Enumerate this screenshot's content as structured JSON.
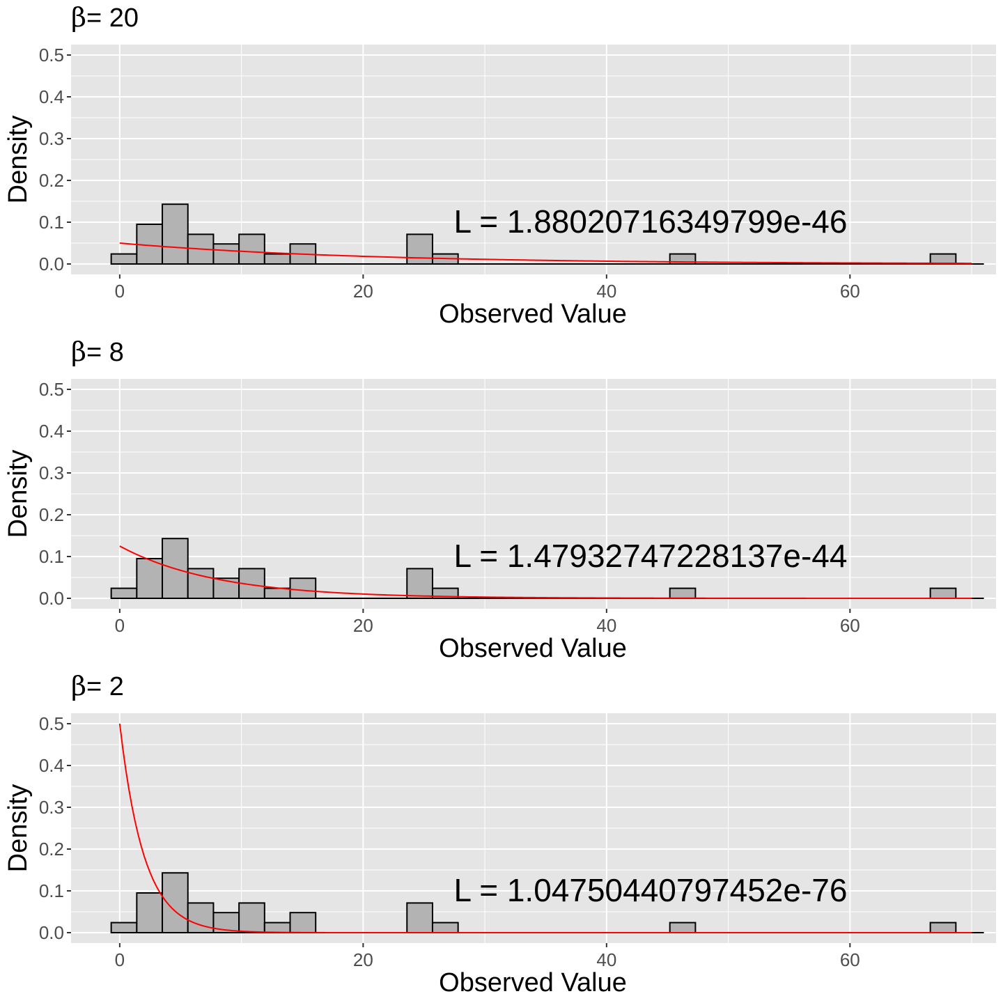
{
  "chart_data": [
    {
      "type": "bar",
      "title_symbol": "β",
      "title_text": "= 20",
      "xlabel": "Observed Value",
      "ylabel": "Density",
      "annotation": "L = 1.88020716349799e-46",
      "xlim": [
        -4,
        72
      ],
      "ylim": [
        -0.025,
        0.525
      ],
      "xticks": [
        0,
        20,
        40,
        60
      ],
      "yticks": [
        "0.0",
        "0.1",
        "0.2",
        "0.3",
        "0.4",
        "0.5"
      ],
      "bin_width": 2.1,
      "histogram": {
        "bin_left": [
          -0.7,
          1.4,
          3.5,
          5.6,
          7.7,
          9.8,
          11.9,
          14.0,
          23.6,
          25.7,
          45.2,
          66.6
        ],
        "density": [
          0.024,
          0.095,
          0.143,
          0.071,
          0.048,
          0.071,
          0.024,
          0.048,
          0.071,
          0.024,
          0.024,
          0.024
        ]
      },
      "curve": {
        "label": "exponential density",
        "beta": 20,
        "x_max": 70,
        "color": "#ff0000"
      },
      "bar_fill": "#b3b3b3",
      "bar_stroke": "#000000",
      "panel_bg": "#e5e5e5",
      "grid_color": "#ffffff"
    },
    {
      "type": "bar",
      "title_symbol": "β",
      "title_text": "= 8",
      "xlabel": "Observed Value",
      "ylabel": "Density",
      "annotation": "L = 1.47932747228137e-44",
      "xlim": [
        -4,
        72
      ],
      "ylim": [
        -0.025,
        0.525
      ],
      "xticks": [
        0,
        20,
        40,
        60
      ],
      "yticks": [
        "0.0",
        "0.1",
        "0.2",
        "0.3",
        "0.4",
        "0.5"
      ],
      "bin_width": 2.1,
      "histogram": {
        "bin_left": [
          -0.7,
          1.4,
          3.5,
          5.6,
          7.7,
          9.8,
          11.9,
          14.0,
          23.6,
          25.7,
          45.2,
          66.6
        ],
        "density": [
          0.024,
          0.095,
          0.143,
          0.071,
          0.048,
          0.071,
          0.024,
          0.048,
          0.071,
          0.024,
          0.024,
          0.024
        ]
      },
      "curve": {
        "label": "exponential density",
        "beta": 8,
        "x_max": 70,
        "color": "#ff0000"
      },
      "bar_fill": "#b3b3b3",
      "bar_stroke": "#000000",
      "panel_bg": "#e5e5e5",
      "grid_color": "#ffffff"
    },
    {
      "type": "bar",
      "title_symbol": "β",
      "title_text": "= 2",
      "xlabel": "Observed Value",
      "ylabel": "Density",
      "annotation": "L = 1.04750440797452e-76",
      "xlim": [
        -4,
        72
      ],
      "ylim": [
        -0.025,
        0.525
      ],
      "xticks": [
        0,
        20,
        40,
        60
      ],
      "yticks": [
        "0.0",
        "0.1",
        "0.2",
        "0.3",
        "0.4",
        "0.5"
      ],
      "bin_width": 2.1,
      "histogram": {
        "bin_left": [
          -0.7,
          1.4,
          3.5,
          5.6,
          7.7,
          9.8,
          11.9,
          14.0,
          23.6,
          25.7,
          45.2,
          66.6
        ],
        "density": [
          0.024,
          0.095,
          0.143,
          0.071,
          0.048,
          0.071,
          0.024,
          0.048,
          0.071,
          0.024,
          0.024,
          0.024
        ]
      },
      "curve": {
        "label": "exponential density",
        "beta": 2,
        "x_max": 70,
        "color": "#ff0000"
      },
      "bar_fill": "#b3b3b3",
      "bar_stroke": "#000000",
      "panel_bg": "#e5e5e5",
      "grid_color": "#ffffff"
    }
  ]
}
